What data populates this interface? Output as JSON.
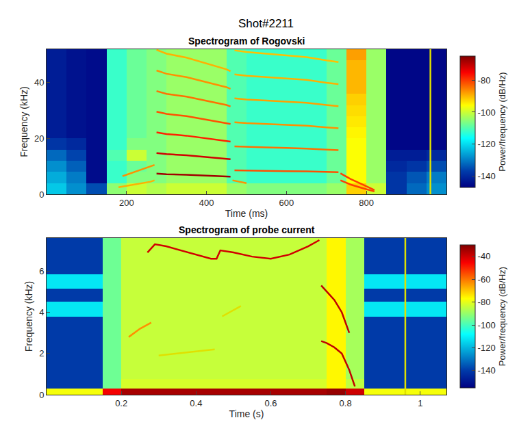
{
  "title": "Shot#2211",
  "chart_data": [
    {
      "type": "heatmap",
      "title": "Spectrogram of Rogovski",
      "x_label": "Time (ms)",
      "y_label": "Frequency (kHz)",
      "colorbar_label": "Power/frequency (dB/Hz)",
      "xlim": [
        0,
        1000
      ],
      "xticks": [
        200,
        400,
        600,
        800
      ],
      "ylim": [
        0,
        52
      ],
      "yticks": [
        0,
        20,
        40
      ],
      "zlim": [
        -147,
        -65
      ],
      "zticks": [
        -140,
        -120,
        -100,
        -80
      ],
      "x": [
        25,
        75,
        125,
        175,
        225,
        275,
        325,
        375,
        425,
        475,
        525,
        575,
        625,
        675,
        725,
        775,
        825,
        875,
        925,
        975
      ],
      "y": [
        2,
        6,
        10,
        14,
        18,
        22,
        26,
        30,
        34,
        38,
        42,
        46,
        50
      ],
      "z": [
        [
          -122,
          -128,
          -135,
          -105,
          -100,
          -102,
          -100,
          -100,
          -100,
          -104,
          -106,
          -106,
          -106,
          -106,
          -104,
          -92,
          -100,
          -138,
          -132,
          -128
        ],
        [
          -125,
          -130,
          -145,
          -112,
          -106,
          -106,
          -104,
          -104,
          -104,
          -110,
          -112,
          -112,
          -112,
          -112,
          -108,
          -96,
          -104,
          -138,
          -134,
          -130
        ],
        [
          -128,
          -133,
          -145,
          -112,
          -108,
          -106,
          -104,
          -104,
          -104,
          -110,
          -112,
          -112,
          -112,
          -112,
          -108,
          -96,
          -104,
          -140,
          -138,
          -135
        ],
        [
          -132,
          -136,
          -145,
          -110,
          -100,
          -106,
          -104,
          -104,
          -104,
          -110,
          -112,
          -112,
          -112,
          -112,
          -108,
          -96,
          -104,
          -142,
          -142,
          -140
        ],
        [
          -138,
          -140,
          -145,
          -112,
          -106,
          -106,
          -104,
          -104,
          -104,
          -110,
          -112,
          -112,
          -112,
          -112,
          -108,
          -96,
          -104,
          -146,
          -146,
          -146
        ],
        [
          -142,
          -144,
          -145,
          -112,
          -108,
          -106,
          -104,
          -104,
          -104,
          -110,
          -112,
          -112,
          -112,
          -112,
          -108,
          -95,
          -104,
          -146,
          -146,
          -146
        ],
        [
          -142,
          -144,
          -145,
          -112,
          -108,
          -106,
          -104,
          -104,
          -104,
          -110,
          -112,
          -112,
          -112,
          -112,
          -108,
          -94,
          -104,
          -146,
          -146,
          -146
        ],
        [
          -142,
          -144,
          -145,
          -112,
          -108,
          -106,
          -104,
          -104,
          -104,
          -110,
          -112,
          -112,
          -112,
          -112,
          -108,
          -93,
          -104,
          -146,
          -146,
          -146
        ],
        [
          -142,
          -144,
          -145,
          -112,
          -108,
          -106,
          -104,
          -104,
          -104,
          -110,
          -112,
          -112,
          -112,
          -112,
          -108,
          -92,
          -104,
          -146,
          -146,
          -146
        ],
        [
          -142,
          -144,
          -145,
          -112,
          -108,
          -106,
          -104,
          -104,
          -104,
          -110,
          -112,
          -112,
          -112,
          -112,
          -108,
          -90,
          -104,
          -146,
          -146,
          -146
        ],
        [
          -142,
          -144,
          -145,
          -112,
          -108,
          -106,
          -104,
          -104,
          -104,
          -110,
          -112,
          -112,
          -112,
          -112,
          -108,
          -90,
          -104,
          -146,
          -146,
          -146
        ],
        [
          -142,
          -144,
          -145,
          -112,
          -108,
          -106,
          -104,
          -104,
          -104,
          -110,
          -112,
          -112,
          -112,
          -112,
          -108,
          -90,
          -104,
          -146,
          -146,
          -146
        ],
        [
          -142,
          -144,
          -145,
          -112,
          -108,
          -106,
          -104,
          -104,
          -104,
          -110,
          -112,
          -112,
          -112,
          -112,
          -108,
          -88,
          -104,
          -146,
          -146,
          -146
        ]
      ],
      "series": [
        {
          "type": "line",
          "color": "#ffb000",
          "x": [
            180,
            200,
            220,
            240,
            260,
            270
          ],
          "values": [
            2.5,
            3,
            3.5,
            4,
            4.5,
            5
          ]
        },
        {
          "type": "line",
          "color": "#ff9000",
          "x": [
            190,
            210,
            230,
            250,
            270
          ],
          "values": [
            6.5,
            7.5,
            8.5,
            9.5,
            10.5
          ]
        },
        {
          "type": "line",
          "color": "#a00000",
          "x": [
            275,
            300,
            350,
            400,
            450,
            460
          ],
          "values": [
            7.4,
            7.2,
            7.0,
            6.7,
            6.4,
            6.3
          ]
        },
        {
          "type": "line",
          "color": "#d00000",
          "x": [
            275,
            300,
            350,
            400,
            450,
            460
          ],
          "values": [
            14.8,
            14.4,
            14,
            13.4,
            12.8,
            12.6
          ]
        },
        {
          "type": "line",
          "color": "#ff2000",
          "x": [
            275,
            300,
            350,
            400,
            450,
            460
          ],
          "values": [
            22.2,
            21.6,
            21,
            20.1,
            19.2,
            18.9
          ]
        },
        {
          "type": "line",
          "color": "#ff5000",
          "x": [
            275,
            300,
            350,
            400,
            450,
            460
          ],
          "values": [
            29.6,
            28.8,
            28,
            26.8,
            25.6,
            25.2
          ]
        },
        {
          "type": "line",
          "color": "#ff7000",
          "x": [
            275,
            300,
            350,
            400,
            450,
            460
          ],
          "values": [
            37,
            36,
            35,
            33.5,
            32,
            31.5
          ]
        },
        {
          "type": "line",
          "color": "#ff9000",
          "x": [
            275,
            300,
            350,
            400,
            450,
            460
          ],
          "values": [
            44.4,
            43.2,
            42,
            40.2,
            38.4,
            37.8
          ]
        },
        {
          "type": "line",
          "color": "#ffb000",
          "x": [
            275,
            300,
            350,
            400,
            450,
            460
          ],
          "values": [
            51.8,
            50.4,
            49,
            46.9,
            44.8,
            44.1
          ]
        },
        {
          "type": "line",
          "color": "#ff9000",
          "x": [
            465,
            480,
            500
          ],
          "values": [
            5,
            4.5,
            4
          ]
        },
        {
          "type": "line",
          "color": "#ff5000",
          "x": [
            470,
            500,
            550,
            600,
            650,
            700,
            730
          ],
          "values": [
            8.6,
            8.5,
            8.4,
            8.3,
            8.2,
            8.0,
            7.9
          ]
        },
        {
          "type": "line",
          "color": "#ff7000",
          "x": [
            470,
            500,
            550,
            600,
            650,
            700,
            730
          ],
          "values": [
            17.2,
            17,
            16.8,
            16.6,
            16.4,
            16,
            15.8
          ]
        },
        {
          "type": "line",
          "color": "#ff9000",
          "x": [
            470,
            500,
            550,
            600,
            650,
            700,
            730
          ],
          "values": [
            25.8,
            25.5,
            25.2,
            24.9,
            24.6,
            24,
            23.7
          ]
        },
        {
          "type": "line",
          "color": "#ffa000",
          "x": [
            470,
            500,
            550,
            600,
            650,
            700,
            730
          ],
          "values": [
            34.4,
            34,
            33.6,
            33.2,
            32.8,
            32,
            31.6
          ]
        },
        {
          "type": "line",
          "color": "#ffb000",
          "x": [
            470,
            500,
            550,
            600,
            650,
            700,
            730
          ],
          "values": [
            43,
            42.5,
            42,
            41.5,
            41,
            40,
            39.5
          ]
        },
        {
          "type": "line",
          "color": "#ffc000",
          "x": [
            470,
            500,
            550,
            600,
            650,
            700,
            730
          ],
          "values": [
            51.6,
            51,
            50.4,
            49.8,
            49.2,
            48,
            47.4
          ]
        },
        {
          "type": "line",
          "color": "#ff4000",
          "x": [
            735,
            760,
            790,
            820
          ],
          "values": [
            7.5,
            5.5,
            3.5,
            1.5
          ]
        },
        {
          "type": "line",
          "color": "#ff4000",
          "x": [
            735,
            760,
            790,
            820
          ],
          "values": [
            5,
            3.5,
            2.2,
            1
          ]
        },
        {
          "type": "line",
          "color": "#e0e000",
          "x": [
            960,
            960
          ],
          "values": [
            0,
            52
          ]
        }
      ]
    },
    {
      "type": "heatmap",
      "title": "Spectrogram of probe current",
      "x_label": "Time (s)",
      "y_label": "Frequency (kHz)",
      "colorbar_label": "Power/frequency (dB/Hz)",
      "xlim": [
        0,
        1.07
      ],
      "xticks": [
        0.2,
        0.4,
        0.6,
        0.8,
        1
      ],
      "ylim": [
        0,
        7.6
      ],
      "yticks": [
        0,
        2,
        4,
        6
      ],
      "zlim": [
        -155,
        -30
      ],
      "zticks": [
        -140,
        -120,
        -100,
        -80,
        -60,
        -40
      ],
      "x": [
        0.025,
        0.075,
        0.125,
        0.175,
        0.225,
        0.275,
        0.325,
        0.375,
        0.425,
        0.475,
        0.525,
        0.575,
        0.625,
        0.675,
        0.725,
        0.775,
        0.825,
        0.875,
        0.925,
        0.975,
        1.025,
        1.075
      ],
      "y": [
        0.1,
        0.5,
        1.0,
        1.6,
        2.2,
        2.8,
        3.4,
        4.2,
        4.8,
        5.5,
        6.2,
        6.9,
        7.5
      ],
      "z": [
        [
          -78,
          -78,
          -78,
          -45,
          -35,
          -35,
          -35,
          -35,
          -35,
          -35,
          -35,
          -35,
          -35,
          -35,
          -35,
          -33,
          -40,
          -78,
          -78,
          -78,
          -78,
          -78
        ],
        [
          -140,
          -140,
          -140,
          -95,
          -82,
          -82,
          -82,
          -82,
          -82,
          -82,
          -82,
          -82,
          -82,
          -82,
          -82,
          -76,
          -85,
          -140,
          -140,
          -140,
          -140,
          -140
        ],
        [
          -140,
          -140,
          -140,
          -95,
          -84,
          -84,
          -84,
          -84,
          -84,
          -84,
          -84,
          -84,
          -84,
          -84,
          -84,
          -76,
          -88,
          -140,
          -140,
          -140,
          -140,
          -140
        ],
        [
          -140,
          -140,
          -140,
          -95,
          -84,
          -84,
          -84,
          -84,
          -84,
          -84,
          -84,
          -84,
          -84,
          -84,
          -84,
          -76,
          -88,
          -140,
          -140,
          -140,
          -140,
          -140
        ],
        [
          -140,
          -140,
          -140,
          -95,
          -84,
          -84,
          -84,
          -84,
          -84,
          -84,
          -84,
          -84,
          -84,
          -84,
          -84,
          -76,
          -88,
          -140,
          -140,
          -140,
          -140,
          -140
        ],
        [
          -140,
          -140,
          -140,
          -95,
          -84,
          -84,
          -84,
          -84,
          -84,
          -84,
          -84,
          -84,
          -84,
          -84,
          -84,
          -76,
          -88,
          -140,
          -140,
          -140,
          -140,
          -140
        ],
        [
          -140,
          -140,
          -140,
          -95,
          -84,
          -84,
          -84,
          -84,
          -84,
          -84,
          -84,
          -84,
          -84,
          -84,
          -84,
          -76,
          -88,
          -140,
          -140,
          -140,
          -140,
          -140
        ],
        [
          -112,
          -112,
          -112,
          -95,
          -84,
          -84,
          -84,
          -84,
          -84,
          -84,
          -84,
          -84,
          -84,
          -84,
          -84,
          -76,
          -88,
          -112,
          -112,
          -112,
          -112,
          -112
        ],
        [
          -140,
          -140,
          -140,
          -95,
          -84,
          -84,
          -84,
          -84,
          -84,
          -84,
          -84,
          -84,
          -84,
          -84,
          -84,
          -76,
          -88,
          -140,
          -140,
          -140,
          -140,
          -140
        ],
        [
          -112,
          -112,
          -112,
          -95,
          -84,
          -84,
          -84,
          -84,
          -84,
          -84,
          -84,
          -84,
          -84,
          -84,
          -84,
          -76,
          -88,
          -112,
          -112,
          -112,
          -112,
          -112
        ],
        [
          -140,
          -140,
          -140,
          -95,
          -84,
          -84,
          -84,
          -84,
          -84,
          -84,
          -84,
          -84,
          -84,
          -84,
          -84,
          -76,
          -88,
          -140,
          -140,
          -140,
          -140,
          -140
        ],
        [
          -140,
          -140,
          -140,
          -95,
          -84,
          -84,
          -84,
          -84,
          -84,
          -84,
          -84,
          -84,
          -84,
          -84,
          -84,
          -76,
          -88,
          -140,
          -140,
          -140,
          -140,
          -140
        ],
        [
          -140,
          -140,
          -140,
          -95,
          -84,
          -84,
          -84,
          -84,
          -84,
          -84,
          -84,
          -84,
          -84,
          -84,
          -84,
          -76,
          -88,
          -140,
          -140,
          -140,
          -140,
          -140
        ]
      ],
      "series": [
        {
          "type": "line",
          "color": "#ff9000",
          "x": [
            0.22,
            0.25,
            0.28
          ],
          "values": [
            2.8,
            3.2,
            3.5
          ]
        },
        {
          "type": "line",
          "color": "#e0e000",
          "x": [
            0.3,
            0.35,
            0.4,
            0.45
          ],
          "values": [
            1.9,
            2.0,
            2.1,
            2.2
          ]
        },
        {
          "type": "line",
          "color": "#e0e000",
          "x": [
            0.47,
            0.5,
            0.52
          ],
          "values": [
            3.8,
            4.1,
            4.3
          ]
        },
        {
          "type": "line",
          "color": "#d00000",
          "x": [
            0.27,
            0.29,
            0.32,
            0.36,
            0.4,
            0.44,
            0.455,
            0.465,
            0.5,
            0.55,
            0.6,
            0.65,
            0.7,
            0.72,
            0.73
          ],
          "values": [
            6.9,
            7.3,
            7.2,
            7.0,
            6.8,
            6.6,
            6.6,
            7.0,
            6.9,
            6.7,
            6.6,
            6.8,
            7.2,
            7.4,
            7.5
          ]
        },
        {
          "type": "line",
          "color": "#c00000",
          "x": [
            0.735,
            0.75,
            0.77,
            0.79,
            0.81
          ],
          "values": [
            5.3,
            5.0,
            4.6,
            4.0,
            3.0
          ]
        },
        {
          "type": "line",
          "color": "#c00000",
          "x": [
            0.735,
            0.75,
            0.77,
            0.79,
            0.81,
            0.825
          ],
          "values": [
            2.6,
            2.5,
            2.3,
            2.0,
            1.2,
            0.4
          ]
        },
        {
          "type": "line",
          "color": "#e0e000",
          "x": [
            0.96,
            0.96
          ],
          "values": [
            0,
            7.6
          ]
        }
      ]
    }
  ]
}
